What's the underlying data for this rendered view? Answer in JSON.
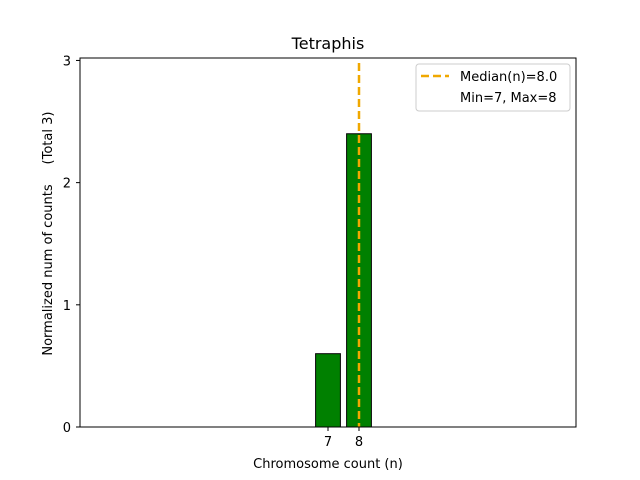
{
  "chart_data": {
    "type": "bar",
    "title": "Tetraphis",
    "xlabel": "Chromosome count (n)",
    "ylabel": "Normalized num of counts",
    "ylabel_total": "(Total 3)",
    "categories": [
      7,
      8
    ],
    "values": [
      0.6,
      2.4
    ],
    "xticks": [
      "7",
      "8"
    ],
    "yticks": [
      "0",
      "1",
      "2",
      "3"
    ],
    "xlim": [
      -1,
      15
    ],
    "ylim": [
      0,
      3.02
    ],
    "grid": false,
    "bar_color": "#008000",
    "bar_edge_color": "#000000",
    "median": {
      "value": 8.0,
      "color": "#f0a800",
      "label": "Median(n)=8.0"
    },
    "legend": {
      "placement": "top-right",
      "entries": [
        "Median(n)=8.0",
        "Min=7, Max=8"
      ]
    }
  }
}
